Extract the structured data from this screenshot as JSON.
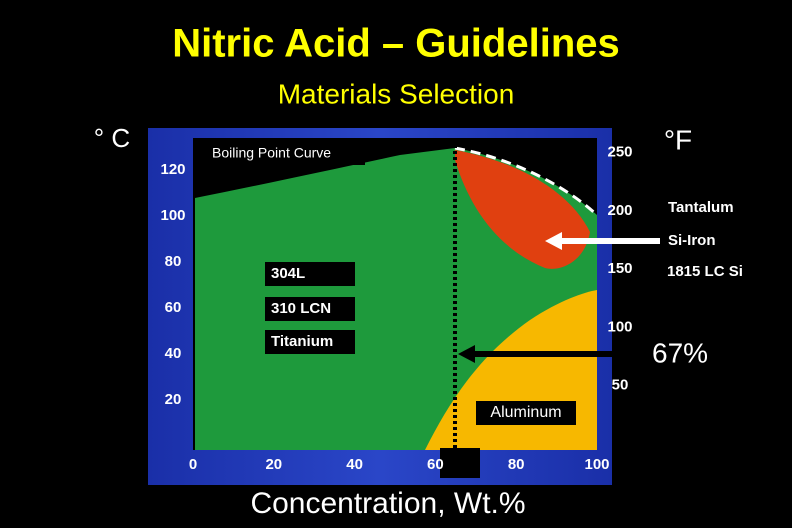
{
  "title": "Nitric Acid – Guidelines",
  "subtitle": "Materials Selection",
  "left_unit": "° C",
  "right_unit": "°F",
  "x_label": "Concentration, Wt.%",
  "x_ticks": [
    0,
    20,
    40,
    60,
    80,
    100
  ],
  "c_ticks": [
    20,
    40,
    60,
    80,
    100,
    120
  ],
  "f_ticks": [
    50,
    100,
    150,
    200,
    250
  ],
  "labels": {
    "boiling": "Boiling Point Curve",
    "tantalum": "Tantalum",
    "si_iron": "Si-Iron",
    "lc_si": "1815  LC Si",
    "s304": "304L",
    "s310": "310 LCN",
    "titanium": "Titanium",
    "pct": "67%",
    "aluminum": "Aluminum"
  }
}
